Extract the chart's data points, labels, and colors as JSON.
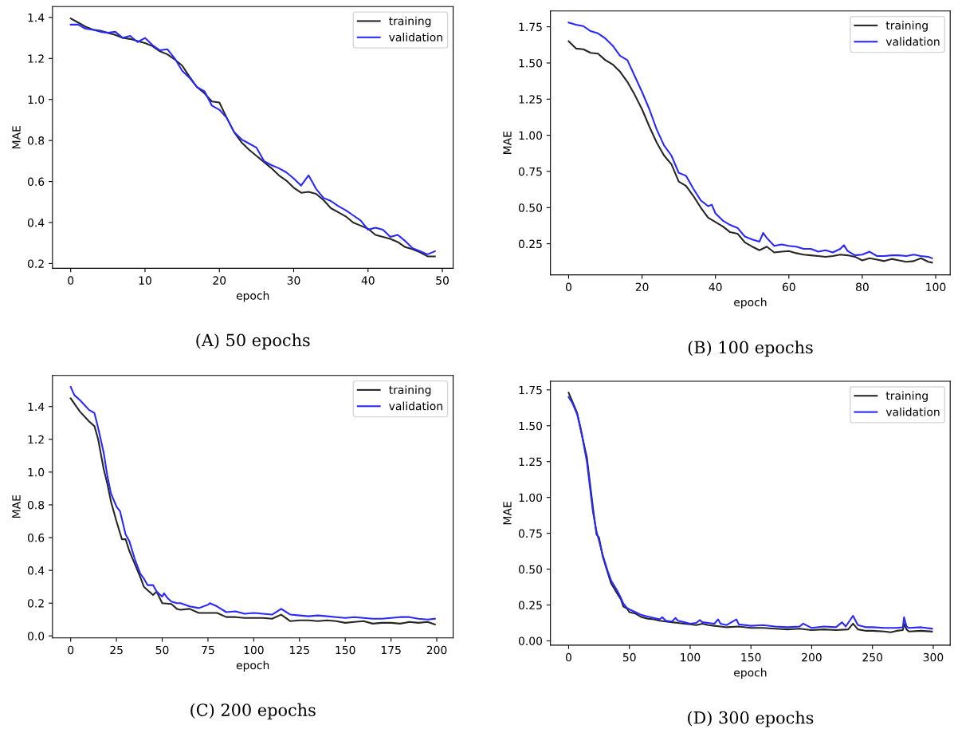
{
  "chart_data": [
    {
      "type": "line",
      "title": "(A) 50 epochs",
      "xlabel": "epoch",
      "ylabel": "MAE",
      "xlim": [
        -2.45,
        51.45
      ],
      "ylim": [
        0.177,
        1.453
      ],
      "xticks": [
        0,
        10,
        20,
        30,
        40,
        50
      ],
      "yticks": [
        {
          "value": 0.2,
          "label": "0.2"
        },
        {
          "value": 0.4,
          "label": "0.4"
        },
        {
          "value": 0.6,
          "label": "0.6"
        },
        {
          "value": 0.8,
          "label": "0.8"
        },
        {
          "value": 1.0,
          "label": "1.0"
        },
        {
          "value": 1.2,
          "label": "1.2"
        },
        {
          "value": 1.4,
          "label": "1.4"
        }
      ],
      "legend": "top right",
      "grid": false,
      "series": [
        {
          "name": "training",
          "color": "#262626",
          "x": [
            0,
            1,
            2,
            3,
            4,
            5,
            6,
            7,
            8,
            9,
            10,
            11,
            12,
            13,
            14,
            15,
            16,
            17,
            18,
            19,
            20,
            21,
            22,
            23,
            24,
            25,
            26,
            27,
            28,
            29,
            30,
            31,
            32,
            33,
            34,
            35,
            36,
            37,
            38,
            39,
            40,
            41,
            42,
            43,
            44,
            45,
            46,
            47,
            48,
            49
          ],
          "values": [
            1.395,
            1.375,
            1.355,
            1.34,
            1.335,
            1.325,
            1.315,
            1.3,
            1.295,
            1.285,
            1.275,
            1.26,
            1.235,
            1.22,
            1.195,
            1.165,
            1.11,
            1.06,
            1.03,
            0.99,
            0.985,
            0.91,
            0.84,
            0.79,
            0.755,
            0.725,
            0.695,
            0.665,
            0.63,
            0.605,
            0.57,
            0.545,
            0.55,
            0.54,
            0.51,
            0.47,
            0.45,
            0.43,
            0.4,
            0.385,
            0.37,
            0.34,
            0.33,
            0.32,
            0.305,
            0.28,
            0.27,
            0.255,
            0.235,
            0.235
          ]
        },
        {
          "name": "validation",
          "color": "#2828ff",
          "x": [
            0,
            1,
            2,
            3,
            4,
            5,
            6,
            7,
            8,
            9,
            10,
            11,
            12,
            13,
            14,
            15,
            16,
            17,
            18,
            19,
            20,
            21,
            22,
            23,
            24,
            25,
            26,
            27,
            28,
            29,
            30,
            31,
            32,
            33,
            34,
            35,
            36,
            37,
            38,
            39,
            40,
            41,
            42,
            43,
            44,
            45,
            46,
            47,
            48,
            49
          ],
          "values": [
            1.365,
            1.365,
            1.345,
            1.34,
            1.33,
            1.325,
            1.33,
            1.3,
            1.31,
            1.28,
            1.3,
            1.265,
            1.24,
            1.245,
            1.2,
            1.14,
            1.105,
            1.06,
            1.04,
            0.97,
            0.95,
            0.91,
            0.84,
            0.805,
            0.785,
            0.765,
            0.7,
            0.68,
            0.665,
            0.645,
            0.615,
            0.58,
            0.63,
            0.565,
            0.52,
            0.505,
            0.48,
            0.46,
            0.435,
            0.41,
            0.365,
            0.375,
            0.365,
            0.33,
            0.34,
            0.31,
            0.275,
            0.26,
            0.245,
            0.26
          ]
        }
      ]
    },
    {
      "type": "line",
      "title": "(B) 100 epochs",
      "xlabel": "epoch",
      "ylabel": "MAE",
      "xlim": [
        -4.95,
        103.95
      ],
      "ylim": [
        0.035,
        1.86
      ],
      "xticks": [
        0,
        20,
        40,
        60,
        80,
        100
      ],
      "yticks": [
        {
          "value": 0.25,
          "label": "0.25"
        },
        {
          "value": 0.5,
          "label": "0.50"
        },
        {
          "value": 0.75,
          "label": "0.75"
        },
        {
          "value": 1.0,
          "label": "1.00"
        },
        {
          "value": 1.25,
          "label": "1.25"
        },
        {
          "value": 1.5,
          "label": "1.50"
        },
        {
          "value": 1.75,
          "label": "1.75"
        }
      ],
      "legend": "top right",
      "grid": false,
      "series": [
        {
          "name": "training",
          "color": "#262626",
          "x": [
            0,
            2,
            4,
            6,
            8,
            10,
            12,
            14,
            16,
            18,
            20,
            22,
            24,
            26,
            28,
            30,
            32,
            34,
            36,
            38,
            40,
            42,
            44,
            46,
            48,
            50,
            52,
            54,
            56,
            58,
            60,
            62,
            64,
            66,
            68,
            70,
            72,
            74,
            76,
            78,
            80,
            82,
            84,
            86,
            88,
            90,
            92,
            94,
            96,
            98,
            99
          ],
          "values": [
            1.65,
            1.6,
            1.595,
            1.57,
            1.565,
            1.52,
            1.49,
            1.44,
            1.37,
            1.28,
            1.18,
            1.06,
            0.95,
            0.86,
            0.8,
            0.68,
            0.65,
            0.58,
            0.5,
            0.43,
            0.4,
            0.37,
            0.33,
            0.32,
            0.26,
            0.23,
            0.205,
            0.23,
            0.19,
            0.195,
            0.2,
            0.185,
            0.175,
            0.17,
            0.165,
            0.16,
            0.165,
            0.175,
            0.17,
            0.16,
            0.135,
            0.15,
            0.14,
            0.13,
            0.145,
            0.135,
            0.125,
            0.13,
            0.15,
            0.125,
            0.12
          ]
        },
        {
          "name": "validation",
          "color": "#2828ff",
          "x": [
            0,
            2,
            4,
            6,
            8,
            10,
            12,
            14,
            16,
            18,
            20,
            22,
            24,
            26,
            28,
            30,
            32,
            34,
            36,
            38,
            39,
            40,
            42,
            44,
            46,
            48,
            50,
            52,
            53,
            54,
            56,
            58,
            60,
            62,
            64,
            66,
            68,
            70,
            72,
            74,
            75,
            76,
            78,
            80,
            82,
            84,
            86,
            88,
            90,
            92,
            94,
            96,
            98,
            99
          ],
          "values": [
            1.78,
            1.765,
            1.755,
            1.72,
            1.705,
            1.67,
            1.62,
            1.55,
            1.52,
            1.41,
            1.3,
            1.18,
            1.04,
            0.93,
            0.86,
            0.74,
            0.72,
            0.63,
            0.55,
            0.51,
            0.52,
            0.46,
            0.41,
            0.38,
            0.36,
            0.3,
            0.28,
            0.265,
            0.325,
            0.29,
            0.235,
            0.245,
            0.235,
            0.23,
            0.215,
            0.215,
            0.195,
            0.205,
            0.19,
            0.215,
            0.24,
            0.2,
            0.17,
            0.175,
            0.195,
            0.165,
            0.165,
            0.17,
            0.17,
            0.165,
            0.175,
            0.165,
            0.16,
            0.15
          ]
        }
      ]
    },
    {
      "type": "line",
      "title": "(C) 200 epochs",
      "xlabel": "epoch",
      "ylabel": "MAE",
      "xlim": [
        -9.95,
        208.95
      ],
      "ylim": [
        -0.012,
        1.59
      ],
      "xticks": [
        0,
        25,
        50,
        75,
        100,
        125,
        150,
        175,
        200
      ],
      "yticks": [
        {
          "value": 0.0,
          "label": "0.0"
        },
        {
          "value": 0.2,
          "label": "0.2"
        },
        {
          "value": 0.4,
          "label": "0.4"
        },
        {
          "value": 0.6,
          "label": "0.6"
        },
        {
          "value": 0.8,
          "label": "0.8"
        },
        {
          "value": 1.0,
          "label": "1.0"
        },
        {
          "value": 1.2,
          "label": "1.2"
        },
        {
          "value": 1.4,
          "label": "1.4"
        }
      ],
      "legend": "top right",
      "grid": false,
      "series": [
        {
          "name": "training",
          "color": "#262626",
          "x": [
            0,
            5,
            10,
            13,
            15,
            18,
            20,
            22,
            25,
            28,
            30,
            32,
            35,
            38,
            40,
            45,
            47,
            50,
            55,
            58,
            60,
            65,
            70,
            75,
            80,
            85,
            90,
            95,
            100,
            105,
            110,
            115,
            120,
            125,
            130,
            135,
            140,
            145,
            150,
            155,
            160,
            165,
            170,
            175,
            180,
            185,
            190,
            195,
            199
          ],
          "values": [
            1.45,
            1.37,
            1.31,
            1.28,
            1.2,
            1.02,
            0.93,
            0.82,
            0.7,
            0.59,
            0.59,
            0.52,
            0.44,
            0.36,
            0.3,
            0.25,
            0.27,
            0.2,
            0.195,
            0.165,
            0.16,
            0.165,
            0.14,
            0.14,
            0.14,
            0.115,
            0.115,
            0.11,
            0.11,
            0.11,
            0.105,
            0.13,
            0.09,
            0.095,
            0.095,
            0.09,
            0.095,
            0.09,
            0.08,
            0.085,
            0.09,
            0.075,
            0.08,
            0.08,
            0.075,
            0.085,
            0.08,
            0.085,
            0.07
          ]
        },
        {
          "name": "validation",
          "color": "#2828ff",
          "x": [
            0,
            2,
            5,
            10,
            13,
            15,
            18,
            20,
            22,
            25,
            27,
            30,
            32,
            35,
            38,
            40,
            42,
            45,
            47,
            50,
            51,
            53,
            55,
            58,
            60,
            65,
            70,
            75,
            76,
            80,
            85,
            90,
            95,
            100,
            105,
            110,
            115,
            120,
            125,
            130,
            135,
            140,
            145,
            150,
            155,
            160,
            165,
            170,
            175,
            180,
            185,
            190,
            195,
            199
          ],
          "values": [
            1.52,
            1.47,
            1.44,
            1.38,
            1.36,
            1.27,
            1.12,
            0.98,
            0.87,
            0.79,
            0.76,
            0.62,
            0.58,
            0.47,
            0.38,
            0.35,
            0.31,
            0.31,
            0.27,
            0.24,
            0.26,
            0.23,
            0.21,
            0.2,
            0.2,
            0.18,
            0.17,
            0.19,
            0.2,
            0.18,
            0.145,
            0.15,
            0.135,
            0.14,
            0.135,
            0.13,
            0.165,
            0.13,
            0.125,
            0.12,
            0.125,
            0.12,
            0.115,
            0.11,
            0.115,
            0.11,
            0.105,
            0.105,
            0.11,
            0.115,
            0.115,
            0.105,
            0.1,
            0.105
          ]
        }
      ]
    },
    {
      "type": "line",
      "title": "(D) 300 epochs",
      "xlabel": "epoch",
      "ylabel": "MAE",
      "xlim": [
        -14.95,
        313.95
      ],
      "ylim": [
        -0.03,
        1.81
      ],
      "xticks": [
        0,
        50,
        100,
        150,
        200,
        250,
        300
      ],
      "yticks": [
        {
          "value": 0.0,
          "label": "0.00"
        },
        {
          "value": 0.25,
          "label": "0.25"
        },
        {
          "value": 0.5,
          "label": "0.50"
        },
        {
          "value": 0.75,
          "label": "0.75"
        },
        {
          "value": 1.0,
          "label": "1.00"
        },
        {
          "value": 1.25,
          "label": "1.25"
        },
        {
          "value": 1.5,
          "label": "1.50"
        },
        {
          "value": 1.75,
          "label": "1.75"
        }
      ],
      "legend": "top right",
      "grid": false,
      "series": [
        {
          "name": "training",
          "color": "#262626",
          "x": [
            0,
            3,
            7,
            10,
            15,
            20,
            23,
            25,
            28,
            32,
            35,
            40,
            43,
            45,
            48,
            50,
            55,
            60,
            65,
            70,
            75,
            80,
            85,
            90,
            95,
            100,
            105,
            110,
            115,
            120,
            125,
            130,
            140,
            150,
            160,
            170,
            180,
            190,
            200,
            210,
            220,
            230,
            234,
            238,
            245,
            250,
            260,
            265,
            270,
            275,
            276,
            278,
            280,
            290,
            299
          ],
          "values": [
            1.73,
            1.67,
            1.59,
            1.47,
            1.28,
            0.93,
            0.74,
            0.72,
            0.59,
            0.48,
            0.4,
            0.33,
            0.29,
            0.24,
            0.225,
            0.2,
            0.19,
            0.165,
            0.155,
            0.15,
            0.14,
            0.135,
            0.13,
            0.125,
            0.12,
            0.115,
            0.11,
            0.12,
            0.11,
            0.105,
            0.1,
            0.095,
            0.1,
            0.09,
            0.09,
            0.085,
            0.08,
            0.085,
            0.075,
            0.08,
            0.075,
            0.08,
            0.12,
            0.08,
            0.07,
            0.07,
            0.065,
            0.06,
            0.07,
            0.075,
            0.12,
            0.08,
            0.065,
            0.07,
            0.065
          ]
        },
        {
          "name": "validation",
          "color": "#2828ff",
          "x": [
            0,
            3,
            7,
            10,
            15,
            20,
            23,
            25,
            28,
            32,
            35,
            40,
            43,
            45,
            48,
            50,
            55,
            60,
            65,
            70,
            75,
            77,
            80,
            85,
            88,
            90,
            95,
            100,
            105,
            108,
            110,
            115,
            120,
            123,
            125,
            130,
            138,
            140,
            150,
            160,
            170,
            180,
            190,
            193,
            200,
            210,
            220,
            225,
            228,
            234,
            238,
            245,
            250,
            260,
            270,
            275,
            276,
            278,
            280,
            290,
            299
          ],
          "values": [
            1.7,
            1.66,
            1.58,
            1.48,
            1.25,
            0.9,
            0.76,
            0.7,
            0.6,
            0.49,
            0.42,
            0.35,
            0.3,
            0.26,
            0.23,
            0.22,
            0.2,
            0.18,
            0.17,
            0.16,
            0.15,
            0.165,
            0.14,
            0.135,
            0.16,
            0.14,
            0.13,
            0.12,
            0.125,
            0.145,
            0.13,
            0.125,
            0.12,
            0.15,
            0.12,
            0.11,
            0.15,
            0.115,
            0.105,
            0.11,
            0.1,
            0.095,
            0.1,
            0.12,
            0.09,
            0.1,
            0.095,
            0.13,
            0.1,
            0.175,
            0.11,
            0.095,
            0.095,
            0.09,
            0.09,
            0.095,
            0.165,
            0.1,
            0.09,
            0.095,
            0.085
          ]
        }
      ]
    }
  ]
}
